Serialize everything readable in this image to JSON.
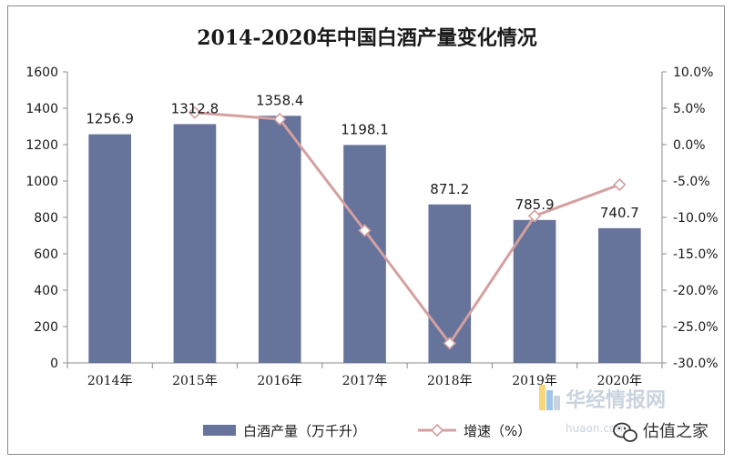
{
  "chart_data": {
    "type": "bar+line",
    "title": "2014-2020年中国白酒产量变化情况",
    "categories": [
      "2014年",
      "2015年",
      "2016年",
      "2017年",
      "2018年",
      "2019年",
      "2020年"
    ],
    "series": [
      {
        "name": "白酒产量（万千升）",
        "type": "bar",
        "axis": "left",
        "values": [
          1256.9,
          1312.8,
          1358.4,
          1198.1,
          871.2,
          785.9,
          740.7
        ],
        "labels": [
          "1256.9",
          "1312.8",
          "1358.4",
          "1198.1",
          "871.2",
          "785.9",
          "740.7"
        ],
        "color": "#66739b"
      },
      {
        "name": "增速（%）",
        "type": "line",
        "axis": "right",
        "values": [
          null,
          4.4,
          3.5,
          -11.8,
          -27.3,
          -9.8,
          -5.5
        ],
        "color": "#d4a09f"
      }
    ],
    "y_left": {
      "min": 0,
      "max": 1600,
      "step": 200,
      "tick_labels": [
        "0",
        "200",
        "400",
        "600",
        "800",
        "1000",
        "1200",
        "1400",
        "1600"
      ]
    },
    "y_right": {
      "min": -30,
      "max": 10,
      "step": 5,
      "tick_labels": [
        "-30.0%",
        "-25.0%",
        "-20.0%",
        "-15.0%",
        "-10.0%",
        "-5.0%",
        "0.0%",
        "5.0%",
        "10.0%"
      ]
    },
    "grid": false,
    "legend": "bottom"
  },
  "watermark": {
    "brand": "华经情报网",
    "url": "huaon.com"
  },
  "wechat_badge": {
    "text": "估值之家",
    "icon": "wechat-icon"
  }
}
